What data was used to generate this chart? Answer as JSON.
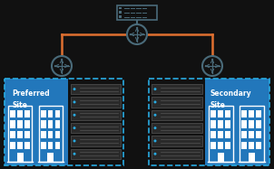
{
  "bg_color": "#111111",
  "orange_color": "#e07030",
  "node_color": "#4a6b7a",
  "blue_color": "#2277bb",
  "cyan_color": "#29abe2",
  "white": "#ffffff",
  "gray_dark": "#2a2a2a",
  "gray_mid": "#444444",
  "preferred_label": "Preferred\nSite",
  "secondary_label": "Secondary\nSite",
  "fig_w": 3.02,
  "fig_h": 1.87,
  "dpi": 100
}
